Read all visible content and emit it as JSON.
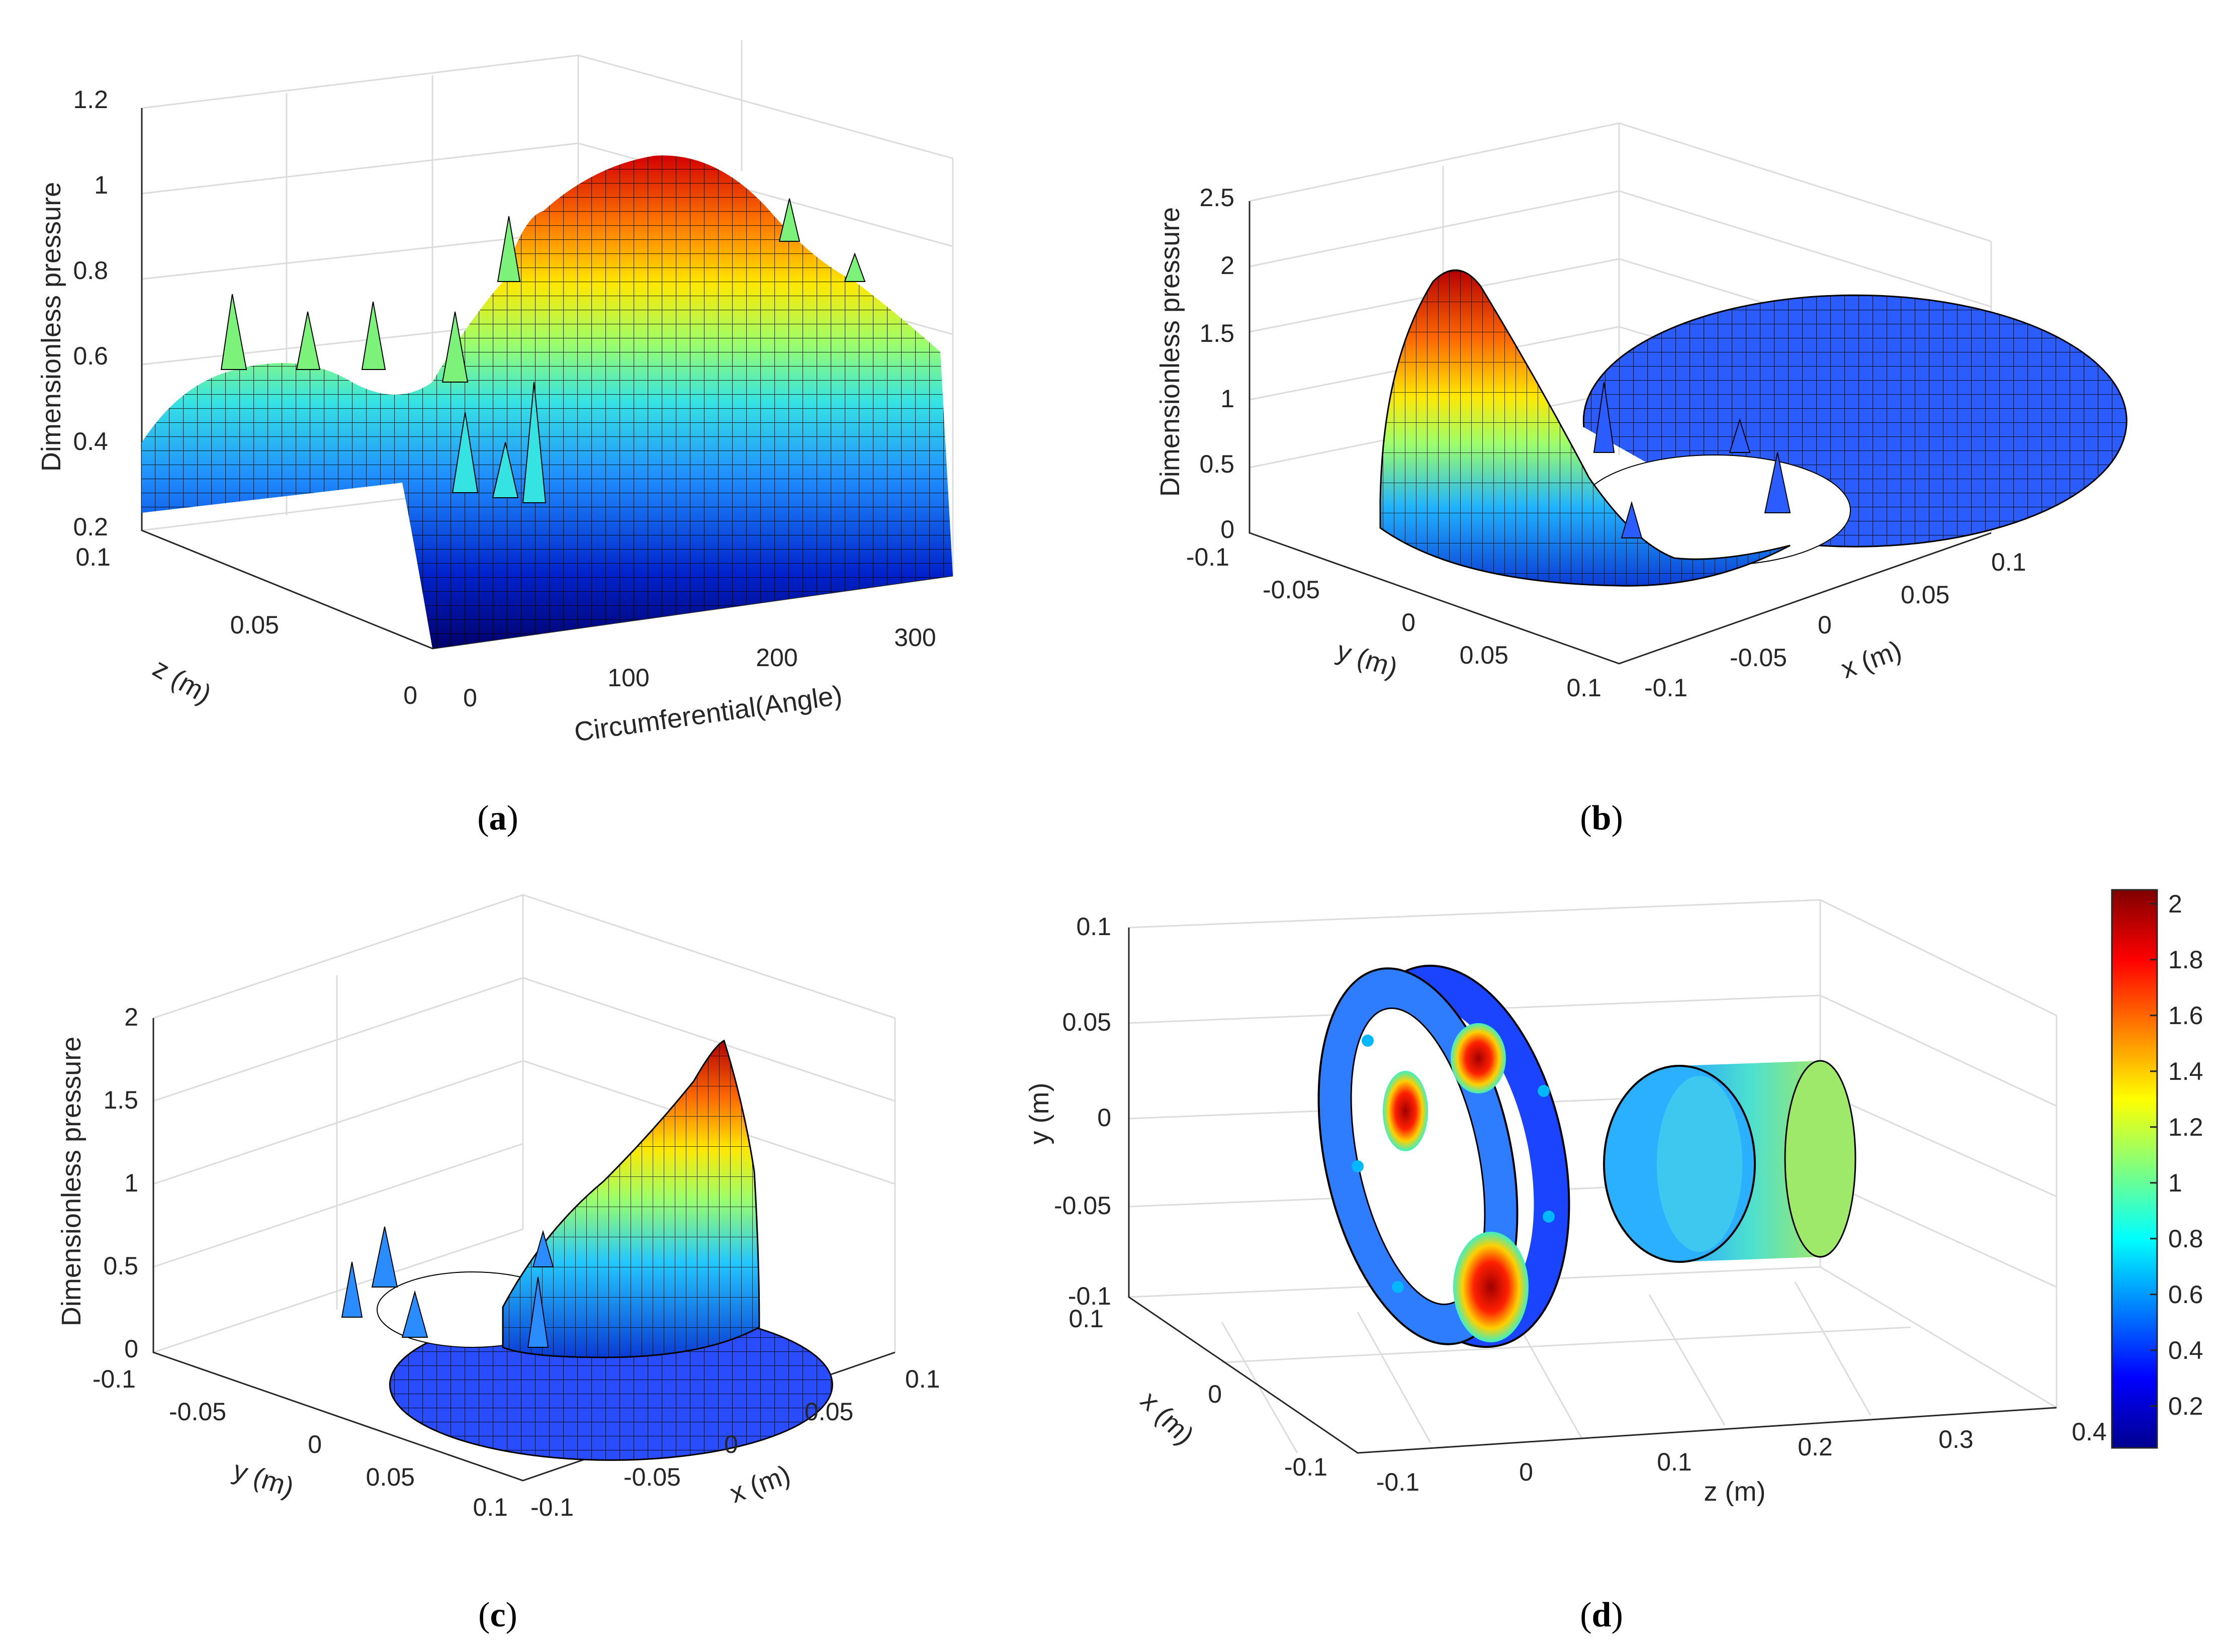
{
  "chart_data": [
    {
      "id": "a",
      "type": "surface",
      "caption": "a",
      "zlabel": "Dimensionless pressure",
      "xlabel": "Circumferential(Angle)",
      "ylabel": "z (m)",
      "z_ticks": [
        "0.2",
        "0.4",
        "0.6",
        "0.8",
        "1",
        "1.2"
      ],
      "x_ticks": [
        "0",
        "100",
        "200",
        "300"
      ],
      "y_ticks": [
        "0",
        "0.05",
        "0.1"
      ],
      "zlim": [
        0.2,
        1.2
      ],
      "peak_value": 1.05
    },
    {
      "id": "b",
      "type": "surface",
      "caption": "b",
      "zlabel": "Dimensionless pressure",
      "xlabel": "x (m)",
      "ylabel": "y (m)",
      "z_ticks": [
        "0",
        "0.5",
        "1",
        "1.5",
        "2",
        "2.5"
      ],
      "x_ticks": [
        "-0.1",
        "-0.05",
        "0",
        "0.05",
        "0.1"
      ],
      "y_ticks": [
        "-0.1",
        "-0.05",
        "0",
        "0.05",
        "0.1"
      ],
      "zlim": [
        0,
        2.5
      ],
      "peak_value": 2.05
    },
    {
      "id": "c",
      "type": "surface",
      "caption": "c",
      "zlabel": "Dimensionless pressure",
      "xlabel": "x (m)",
      "ylabel": "y (m)",
      "z_ticks": [
        "0",
        "0.5",
        "1",
        "1.5",
        "2"
      ],
      "x_ticks": [
        "-0.1",
        "-0.05",
        "0",
        "0.05",
        "0.1"
      ],
      "y_ticks": [
        "-0.1",
        "-0.05",
        "0",
        "0.05",
        "0.1"
      ],
      "zlim": [
        0,
        2
      ],
      "peak_value": 1.85
    },
    {
      "id": "d",
      "type": "surface",
      "caption": "d",
      "ylabel": "y (m)",
      "xlabel": "x (m)",
      "zlabel": "z (m)",
      "y_ticks": [
        "0.1",
        "0.05",
        "0",
        "-0.05",
        "-0.1"
      ],
      "x_ticks": [
        "0.1",
        "0",
        "-0.1"
      ],
      "z_ticks": [
        "-0.1",
        "0",
        "0.1",
        "0.2",
        "0.3",
        "0.4"
      ],
      "colorbar": {
        "ticks": [
          "2",
          "1.8",
          "1.6",
          "1.4",
          "1.2",
          "1",
          "0.8",
          "0.6",
          "0.4",
          "0.2"
        ],
        "range": [
          0.05,
          2.05
        ],
        "colormap": [
          "#00008f",
          "#0000ff",
          "#0080ff",
          "#00ffff",
          "#80ff80",
          "#ffff00",
          "#ff8000",
          "#ff0000",
          "#800000"
        ]
      }
    }
  ]
}
